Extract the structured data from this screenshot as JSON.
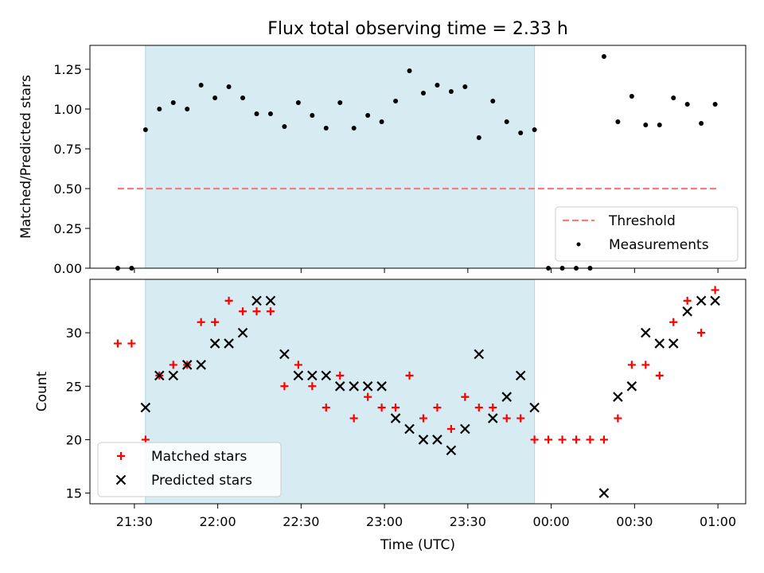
{
  "chart_data": [
    {
      "type": "scatter",
      "panel": "top",
      "title": "Flux total observing time = 2.33 h",
      "ylabel": "Matched/Predicted stars",
      "ylim": [
        0,
        1.4
      ],
      "yticks": [
        "0.00",
        "0.25",
        "0.50",
        "0.75",
        "1.00",
        "1.25"
      ],
      "ytick_values": [
        0,
        0.25,
        0.5,
        0.75,
        1.0,
        1.25
      ],
      "xlim_minutes": [
        1274,
        1510
      ],
      "highlight_span_minutes": [
        1294,
        1434
      ],
      "highlight_color": "#add8e6",
      "legend": {
        "location": "lower right",
        "entries": [
          "Threshold",
          "Measurements"
        ]
      },
      "series": [
        {
          "name": "Threshold",
          "style": "dashed-line",
          "color": "#f08080",
          "x": [
            1284,
            1500
          ],
          "y": [
            0.5,
            0.5
          ]
        },
        {
          "name": "Measurements",
          "style": "dot",
          "color": "#000000",
          "x": [
            1284,
            1289,
            1294,
            1299,
            1304,
            1309,
            1314,
            1319,
            1324,
            1329,
            1334,
            1339,
            1344,
            1349,
            1354,
            1359,
            1364,
            1369,
            1374,
            1379,
            1384,
            1389,
            1394,
            1399,
            1404,
            1409,
            1414,
            1419,
            1424,
            1429,
            1434,
            1439,
            1444,
            1449,
            1454,
            1459,
            1464,
            1469,
            1474,
            1479,
            1484,
            1489,
            1494,
            1499
          ],
          "y": [
            0.0,
            0.0,
            0.87,
            1.0,
            1.04,
            1.0,
            1.15,
            1.07,
            1.14,
            1.07,
            0.97,
            0.97,
            0.89,
            1.04,
            0.96,
            0.88,
            1.04,
            0.88,
            0.96,
            0.92,
            1.05,
            1.24,
            1.1,
            1.15,
            1.11,
            1.14,
            0.82,
            1.05,
            0.92,
            0.85,
            0.87,
            0.0,
            0.0,
            0.0,
            0.0,
            1.33,
            0.92,
            1.08,
            0.9,
            0.9,
            1.07,
            1.03,
            0.91,
            1.03
          ]
        }
      ]
    },
    {
      "type": "scatter",
      "panel": "bottom",
      "ylabel": "Count",
      "xlabel": "Time (UTC)",
      "ylim": [
        14,
        35
      ],
      "yticks": [
        "15",
        "20",
        "25",
        "30"
      ],
      "ytick_values": [
        15,
        20,
        25,
        30
      ],
      "xticks": [
        "21:30",
        "22:00",
        "22:30",
        "23:00",
        "23:30",
        "00:00",
        "00:30",
        "01:00"
      ],
      "xtick_values_minutes": [
        1290,
        1320,
        1350,
        1380,
        1410,
        1440,
        1470,
        1500
      ],
      "xlim_minutes": [
        1274,
        1510
      ],
      "highlight_span_minutes": [
        1294,
        1434
      ],
      "highlight_color": "#add8e6",
      "legend": {
        "location": "lower left",
        "entries": [
          "Matched stars",
          "Predicted stars"
        ]
      },
      "series": [
        {
          "name": "Matched stars",
          "style": "plus",
          "color": "#ff0000",
          "x": [
            1284,
            1289,
            1294,
            1299,
            1304,
            1309,
            1314,
            1319,
            1324,
            1329,
            1334,
            1339,
            1344,
            1349,
            1354,
            1359,
            1364,
            1369,
            1374,
            1379,
            1384,
            1389,
            1394,
            1399,
            1404,
            1409,
            1414,
            1419,
            1424,
            1429,
            1434,
            1439,
            1444,
            1449,
            1454,
            1459,
            1464,
            1469,
            1474,
            1479,
            1484,
            1489,
            1494,
            1499
          ],
          "y": [
            29,
            29,
            20,
            26,
            27,
            27,
            31,
            31,
            33,
            32,
            32,
            32,
            25,
            27,
            25,
            23,
            26,
            22,
            24,
            23,
            23,
            26,
            22,
            23,
            21,
            24,
            23,
            23,
            22,
            22,
            20,
            20,
            20,
            20,
            20,
            20,
            22,
            27,
            27,
            26,
            31,
            33,
            30,
            34
          ]
        },
        {
          "name": "Predicted stars",
          "style": "x",
          "color": "#000000",
          "x": [
            1294,
            1299,
            1304,
            1309,
            1314,
            1319,
            1324,
            1329,
            1334,
            1339,
            1344,
            1349,
            1354,
            1359,
            1364,
            1369,
            1374,
            1379,
            1384,
            1389,
            1394,
            1399,
            1404,
            1409,
            1414,
            1419,
            1424,
            1429,
            1434,
            1459,
            1464,
            1469,
            1474,
            1479,
            1484,
            1489,
            1494,
            1499
          ],
          "y": [
            23,
            26,
            26,
            27,
            27,
            29,
            29,
            30,
            33,
            33,
            28,
            26,
            26,
            26,
            25,
            25,
            25,
            25,
            22,
            21,
            20,
            20,
            19,
            21,
            28,
            22,
            24,
            26,
            23,
            15,
            24,
            25,
            30,
            29,
            29,
            32,
            33,
            33
          ]
        }
      ]
    }
  ]
}
